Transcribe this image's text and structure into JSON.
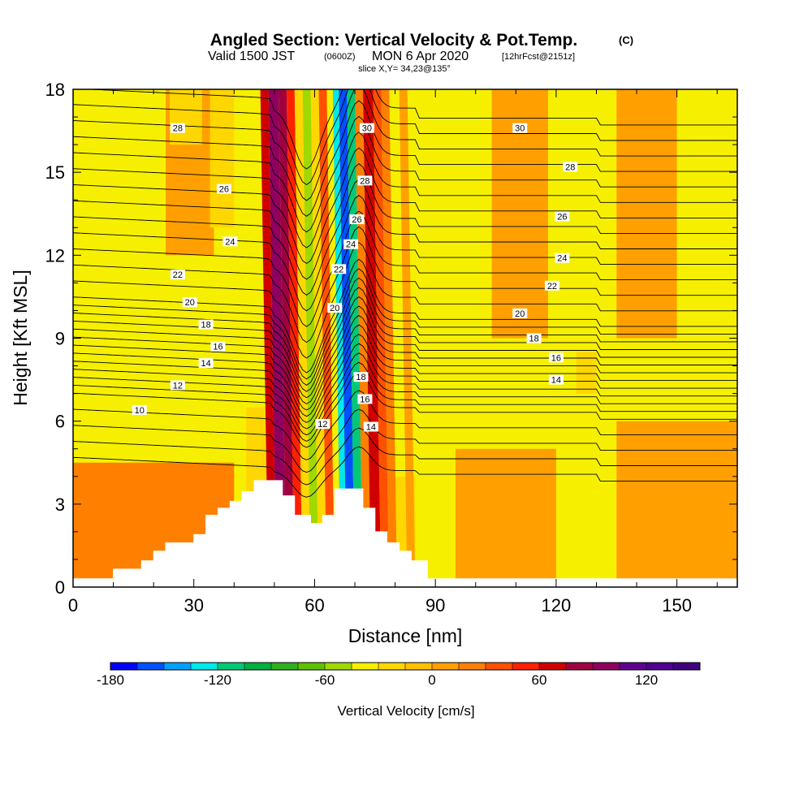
{
  "header": {
    "title": "Angled Section: Vertical Velocity & Pot.Temp.",
    "title_mark": "(C)",
    "subtitle_valid": "Valid 1500 JST",
    "subtitle_z": "(0600Z)",
    "subtitle_date": "MON 6 Apr 2020",
    "subtitle_fcst": "[12hrFcst@2151z]",
    "slice_label": "slice X,Y= 34,23@135°"
  },
  "chart_data": {
    "type": "heatmap",
    "xlabel": "Distance [nm]",
    "ylabel": "Height [Kft MSL]",
    "xlim": [
      0,
      165
    ],
    "ylim": [
      0,
      18
    ],
    "xticks": [
      0,
      30,
      60,
      90,
      120,
      150
    ],
    "yticks": [
      0,
      3,
      6,
      9,
      12,
      15,
      18
    ],
    "x_minor_step": 10,
    "y_minor_step": 1,
    "background_value_color": "#f6f000",
    "velocity_bands": [
      {
        "x0": 48.5,
        "x1": 50.5,
        "w": 60
      },
      {
        "x0": 50.5,
        "x1": 53,
        "w": 90
      },
      {
        "x0": 53,
        "x1": 55,
        "w": 75
      },
      {
        "x0": 55,
        "x1": 57,
        "w": 45
      },
      {
        "x0": 57,
        "x1": 59,
        "w": -25
      },
      {
        "x0": 59,
        "x1": 61,
        "w": -55
      },
      {
        "x0": 61,
        "x1": 63,
        "w": -30
      },
      {
        "x0": 63,
        "x1": 65,
        "w": 30
      },
      {
        "x0": 65,
        "x1": 66.5,
        "w": -40
      },
      {
        "x0": 66.5,
        "x1": 68,
        "w": -130
      },
      {
        "x0": 68,
        "x1": 70,
        "w": -160
      },
      {
        "x0": 70,
        "x1": 72,
        "w": -110
      },
      {
        "x0": 72,
        "x1": 74,
        "w": 15
      },
      {
        "x0": 74,
        "x1": 76.5,
        "w": 65
      },
      {
        "x0": 76.5,
        "x1": 78.5,
        "w": 40
      },
      {
        "x0": 78.5,
        "x1": 80.5,
        "w": 15
      },
      {
        "x0": 83,
        "x1": 85,
        "w": 8
      }
    ],
    "upper_patches": [
      {
        "x0": 23,
        "x1": 35,
        "w": 10,
        "y0": 12,
        "y1": 18
      },
      {
        "x0": 34,
        "x1": 40,
        "w": -30,
        "y0": 13,
        "y1": 18
      },
      {
        "x0": 24,
        "x1": 32,
        "w": -20,
        "y0": 16,
        "y1": 18
      },
      {
        "x0": 104,
        "x1": 118,
        "w": 10,
        "y0": 9,
        "y1": 18
      },
      {
        "x0": 135,
        "x1": 150,
        "w": 10,
        "y0": 9,
        "y1": 18
      },
      {
        "x0": 125,
        "x1": 130,
        "w": -20,
        "y0": 7,
        "y1": 8.5
      }
    ],
    "low_level_regions": [
      {
        "x0": 0,
        "x1": 40,
        "y0": 0,
        "y1": 4.5,
        "w": 15
      },
      {
        "x0": 95,
        "x1": 120,
        "y0": 0,
        "y1": 5,
        "w": 10
      },
      {
        "x0": 135,
        "x1": 165,
        "y0": 0,
        "y1": 6,
        "w": 12
      },
      {
        "x0": 43,
        "x1": 56,
        "y0": 2.5,
        "y1": 6.5,
        "w": -30
      },
      {
        "x0": 73,
        "x1": 85,
        "y0": 0.5,
        "y1": 4,
        "w": -30
      }
    ],
    "terrain": [
      [
        0,
        0.3
      ],
      [
        10,
        0.3
      ],
      [
        10,
        0.65
      ],
      [
        17,
        0.65
      ],
      [
        17,
        0.95
      ],
      [
        20,
        0.95
      ],
      [
        20,
        1.3
      ],
      [
        23,
        1.3
      ],
      [
        23,
        1.6
      ],
      [
        30,
        1.6
      ],
      [
        30,
        1.9
      ],
      [
        33,
        1.9
      ],
      [
        33,
        2.6
      ],
      [
        36,
        2.6
      ],
      [
        36,
        2.85
      ],
      [
        39,
        2.85
      ],
      [
        39,
        3.1
      ],
      [
        42,
        3.1
      ],
      [
        42,
        3.45
      ],
      [
        45,
        3.45
      ],
      [
        45,
        3.85
      ],
      [
        52,
        3.85
      ],
      [
        52,
        3.3
      ],
      [
        55,
        3.3
      ],
      [
        55,
        2.6
      ],
      [
        59,
        2.6
      ],
      [
        59,
        2.3
      ],
      [
        62,
        2.3
      ],
      [
        62,
        2.6
      ],
      [
        65,
        2.6
      ],
      [
        65,
        3.55
      ],
      [
        72,
        3.55
      ],
      [
        72,
        2.85
      ],
      [
        75,
        2.85
      ],
      [
        75,
        2.0
      ],
      [
        78,
        2.0
      ],
      [
        78,
        1.6
      ],
      [
        81,
        1.6
      ],
      [
        81,
        1.3
      ],
      [
        84,
        1.3
      ],
      [
        84,
        0.95
      ],
      [
        88,
        0.95
      ],
      [
        88,
        0.3
      ],
      [
        165,
        0.3
      ]
    ],
    "isentrope_levels": [
      8,
      9,
      10,
      11,
      12,
      12.5,
      13,
      13.5,
      14,
      14.5,
      15,
      15.5,
      16,
      16.5,
      17,
      17.5,
      18,
      19,
      20,
      21,
      22,
      23,
      24,
      25,
      26,
      27,
      28,
      29,
      30,
      31
    ],
    "contour_labels": [
      {
        "text": "10",
        "x": 16.5,
        "y": 6.4
      },
      {
        "text": "12",
        "x": 26,
        "y": 7.3
      },
      {
        "text": "14",
        "x": 33,
        "y": 8.1
      },
      {
        "text": "16",
        "x": 36,
        "y": 8.7
      },
      {
        "text": "18",
        "x": 33,
        "y": 9.5
      },
      {
        "text": "20",
        "x": 29,
        "y": 10.3
      },
      {
        "text": "22",
        "x": 26,
        "y": 11.3
      },
      {
        "text": "24",
        "x": 39,
        "y": 12.5
      },
      {
        "text": "26",
        "x": 37.5,
        "y": 14.4
      },
      {
        "text": "28",
        "x": 26,
        "y": 16.6
      },
      {
        "text": "12",
        "x": 62,
        "y": 5.9
      },
      {
        "text": "20",
        "x": 65,
        "y": 10.1
      },
      {
        "text": "22",
        "x": 66,
        "y": 11.5
      },
      {
        "text": "24",
        "x": 69,
        "y": 12.4
      },
      {
        "text": "26",
        "x": 70.5,
        "y": 13.3
      },
      {
        "text": "28",
        "x": 72.5,
        "y": 14.7
      },
      {
        "text": "30",
        "x": 73,
        "y": 16.6
      },
      {
        "text": "18",
        "x": 71.5,
        "y": 7.6
      },
      {
        "text": "16",
        "x": 72.5,
        "y": 6.8
      },
      {
        "text": "14",
        "x": 74,
        "y": 5.8
      },
      {
        "text": "30",
        "x": 111,
        "y": 16.6
      },
      {
        "text": "28",
        "x": 123.5,
        "y": 15.2
      },
      {
        "text": "26",
        "x": 121.5,
        "y": 13.4
      },
      {
        "text": "24",
        "x": 121.5,
        "y": 11.9
      },
      {
        "text": "22",
        "x": 119,
        "y": 10.9
      },
      {
        "text": "20",
        "x": 111,
        "y": 9.9
      },
      {
        "text": "18",
        "x": 114.5,
        "y": 9.0
      },
      {
        "text": "16",
        "x": 120,
        "y": 8.3
      },
      {
        "text": "14",
        "x": 120,
        "y": 7.5
      }
    ]
  },
  "colorbar": {
    "title": "Vertical Velocity [cm/s]",
    "min": -180,
    "max": 150,
    "step": 15,
    "tick_values": [
      -180,
      -120,
      -60,
      0,
      60,
      120
    ],
    "tick_labels": [
      "-180",
      "-120",
      "-60",
      "0",
      "60",
      "120"
    ],
    "colors": [
      "#0000ff",
      "#0050ff",
      "#00a0ff",
      "#00e8e8",
      "#00c878",
      "#00b040",
      "#30b020",
      "#60c000",
      "#a0d800",
      "#f6f000",
      "#ffd700",
      "#ffc000",
      "#ffa000",
      "#ff8000",
      "#ff5000",
      "#ff2000",
      "#d00000",
      "#a00040",
      "#900060",
      "#600090",
      "#500090",
      "#400080"
    ]
  }
}
